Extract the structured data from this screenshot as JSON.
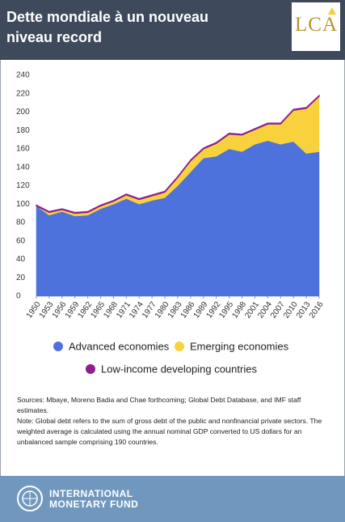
{
  "header": {
    "title": "Dette mondiale à un nouveau niveau record",
    "logo": "LCA"
  },
  "chart_data": {
    "type": "stacked-area",
    "x": [
      1950,
      1953,
      1956,
      1959,
      1962,
      1965,
      1968,
      1971,
      1974,
      1977,
      1980,
      1983,
      1986,
      1989,
      1992,
      1995,
      1998,
      2001,
      2004,
      2007,
      2010,
      2013,
      2016
    ],
    "series": [
      {
        "name": "Advanced economies",
        "color": "#4d72dc",
        "values": [
          98,
          88,
          92,
          87,
          88,
          95,
          100,
          106,
          100,
          104,
          107,
          120,
          135,
          150,
          152,
          160,
          157,
          165,
          169,
          165,
          168,
          155,
          157
        ]
      },
      {
        "name": "Emerging economies",
        "color": "#f8d23c",
        "values": [
          0,
          3,
          2,
          3,
          3,
          3,
          3,
          4,
          5,
          5,
          6,
          9,
          12,
          10,
          14,
          16,
          18,
          16,
          18,
          22,
          34,
          49,
          60
        ]
      },
      {
        "name": "Low-income developing countries",
        "color": "#8e1f8e",
        "values": [
          1,
          1,
          1,
          1,
          1,
          1,
          1,
          1,
          1,
          1,
          1,
          1,
          1,
          1,
          1,
          1,
          1,
          1,
          1,
          1,
          1,
          1,
          1
        ]
      }
    ],
    "xlim": [
      1950,
      2016
    ],
    "xticks": [
      1950,
      1953,
      1956,
      1959,
      1962,
      1965,
      1968,
      1971,
      1974,
      1977,
      1980,
      1983,
      1986,
      1989,
      1992,
      1995,
      1998,
      2001,
      2004,
      2007,
      2010,
      2013,
      2016
    ],
    "ylim": [
      0,
      240
    ],
    "yticks": [
      0,
      20,
      40,
      60,
      80,
      100,
      120,
      140,
      160,
      180,
      200,
      220,
      240
    ],
    "grid": false
  },
  "notes": {
    "sources": "Sources: Mbaye, Moreno Badia and Chae forthcoming; Global Debt Database, and IMF staff estimates.",
    "note": "Note: Global debt refers to the sum of gross debt of the public and nonfinancial private sectors. The weighted average is calculated using the annual nominal GDP converted to US dollars for an unbalanced sample comprising 190 countries."
  },
  "footer": {
    "line1": "INTERNATIONAL",
    "line2": "MONETARY FUND"
  }
}
